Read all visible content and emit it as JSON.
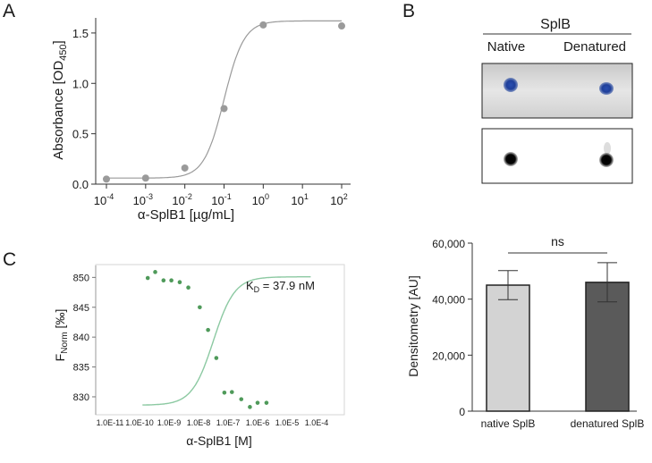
{
  "panels": {
    "A": "A",
    "B": "B",
    "C": "C"
  },
  "colors": {
    "gray_point": "#9a9a9a",
    "green_curve": "#8cc9a2",
    "green_point": "#4f9a5a",
    "blue_spot": "#1f3f9a",
    "bar_native": "#d3d3d3",
    "bar_denatured": "#5a5a5a"
  },
  "chart_data": [
    {
      "id": "A",
      "type": "scatter",
      "title": "",
      "xlabel": "α-SplB1 [µg/mL]",
      "ylabel_main": "Absorbance [OD",
      "ylabel_sub": "450",
      "ylabel_end": "]",
      "xscale": "log",
      "xlim_exp": [
        -4,
        2
      ],
      "ylim": [
        0,
        1.65
      ],
      "yticks": [
        0.0,
        0.5,
        1.0,
        1.5
      ],
      "ytick_labels": [
        "0.0",
        "0.5",
        "1.0",
        "1.5"
      ],
      "xticks_exp": [
        -4,
        -3,
        -2,
        -1,
        0,
        1,
        2
      ],
      "xtick_base": "10",
      "xtick_exps": [
        "-4",
        "-3",
        "-2",
        "-1",
        "0",
        "1",
        "2"
      ],
      "points": [
        {
          "x": 0.0001,
          "y": 0.05
        },
        {
          "x": 0.001,
          "y": 0.06
        },
        {
          "x": 0.01,
          "y": 0.16
        },
        {
          "x": 0.1,
          "y": 0.75
        },
        {
          "x": 1,
          "y": 1.58
        },
        {
          "x": 100,
          "y": 1.57
        }
      ],
      "fit": {
        "bottom": 0.06,
        "top": 1.62,
        "log_ec50": -1.0,
        "hill": 1.7
      }
    },
    {
      "id": "C",
      "type": "scatter",
      "title": "",
      "annotation_main": "K",
      "annotation_sub": "D",
      "annotation_end": " = 37.9 nM",
      "xlabel": "α-SplB1 [M]",
      "ylabel_main": "F",
      "ylabel_sub": "Norm",
      "ylabel_end": " [‰]",
      "xscale": "log",
      "xlim_exp": [
        -11,
        -4
      ],
      "ylim": [
        827,
        852
      ],
      "yticks": [
        830,
        835,
        840,
        845,
        850
      ],
      "ytick_labels": [
        "830",
        "835",
        "840",
        "845",
        "850"
      ],
      "xticks_exp": [
        -11,
        -10,
        -9,
        -8,
        -7,
        -6,
        -5,
        -4
      ],
      "xtick_labels": [
        "1.0E-11",
        "1.0E-10",
        "1.0E-9",
        "1.0E-8",
        "1.0E-7",
        "1.0E-6",
        "1.0E-5",
        "1.0E-4"
      ],
      "points": [
        {
          "x": 1.9e-10,
          "y": 849.9
        },
        {
          "x": 3.4e-10,
          "y": 850.9
        },
        {
          "x": 6.5e-10,
          "y": 849.5
        },
        {
          "x": 1.2e-09,
          "y": 849.5
        },
        {
          "x": 2.3e-09,
          "y": 849.2
        },
        {
          "x": 4.5e-09,
          "y": 848.3
        },
        {
          "x": 1.1e-08,
          "y": 845.0
        },
        {
          "x": 2.1e-08,
          "y": 841.2
        },
        {
          "x": 4e-08,
          "y": 836.5
        },
        {
          "x": 7.5e-08,
          "y": 830.7
        },
        {
          "x": 1.35e-07,
          "y": 830.8
        },
        {
          "x": 2.8e-07,
          "y": 829.6
        },
        {
          "x": 5.5e-07,
          "y": 828.3
        },
        {
          "x": 1e-06,
          "y": 829.0
        },
        {
          "x": 2e-06,
          "y": 829.0
        }
      ],
      "fit": {
        "bottom": 828.6,
        "top": 850.1,
        "log_ec50": -7.5,
        "hill": 1.2,
        "x_range_exp": [
          -9.9,
          -4.2
        ]
      }
    },
    {
      "id": "D",
      "type": "bar",
      "title": "",
      "xlabel": "",
      "ylabel": "Densitometry [AU]",
      "categories": [
        "native SplB",
        "denatured SplB"
      ],
      "values": [
        45000,
        46000
      ],
      "errors": [
        5200,
        7000
      ],
      "ylim": [
        0,
        60000
      ],
      "yticks": [
        0,
        20000,
        40000,
        60000
      ],
      "ytick_labels": [
        "0",
        "20,000",
        "40,000",
        "60,000"
      ],
      "significance": "ns"
    }
  ],
  "blot": {
    "protein_label": "SplB",
    "lane_labels": [
      "Native",
      "Denatured"
    ]
  }
}
